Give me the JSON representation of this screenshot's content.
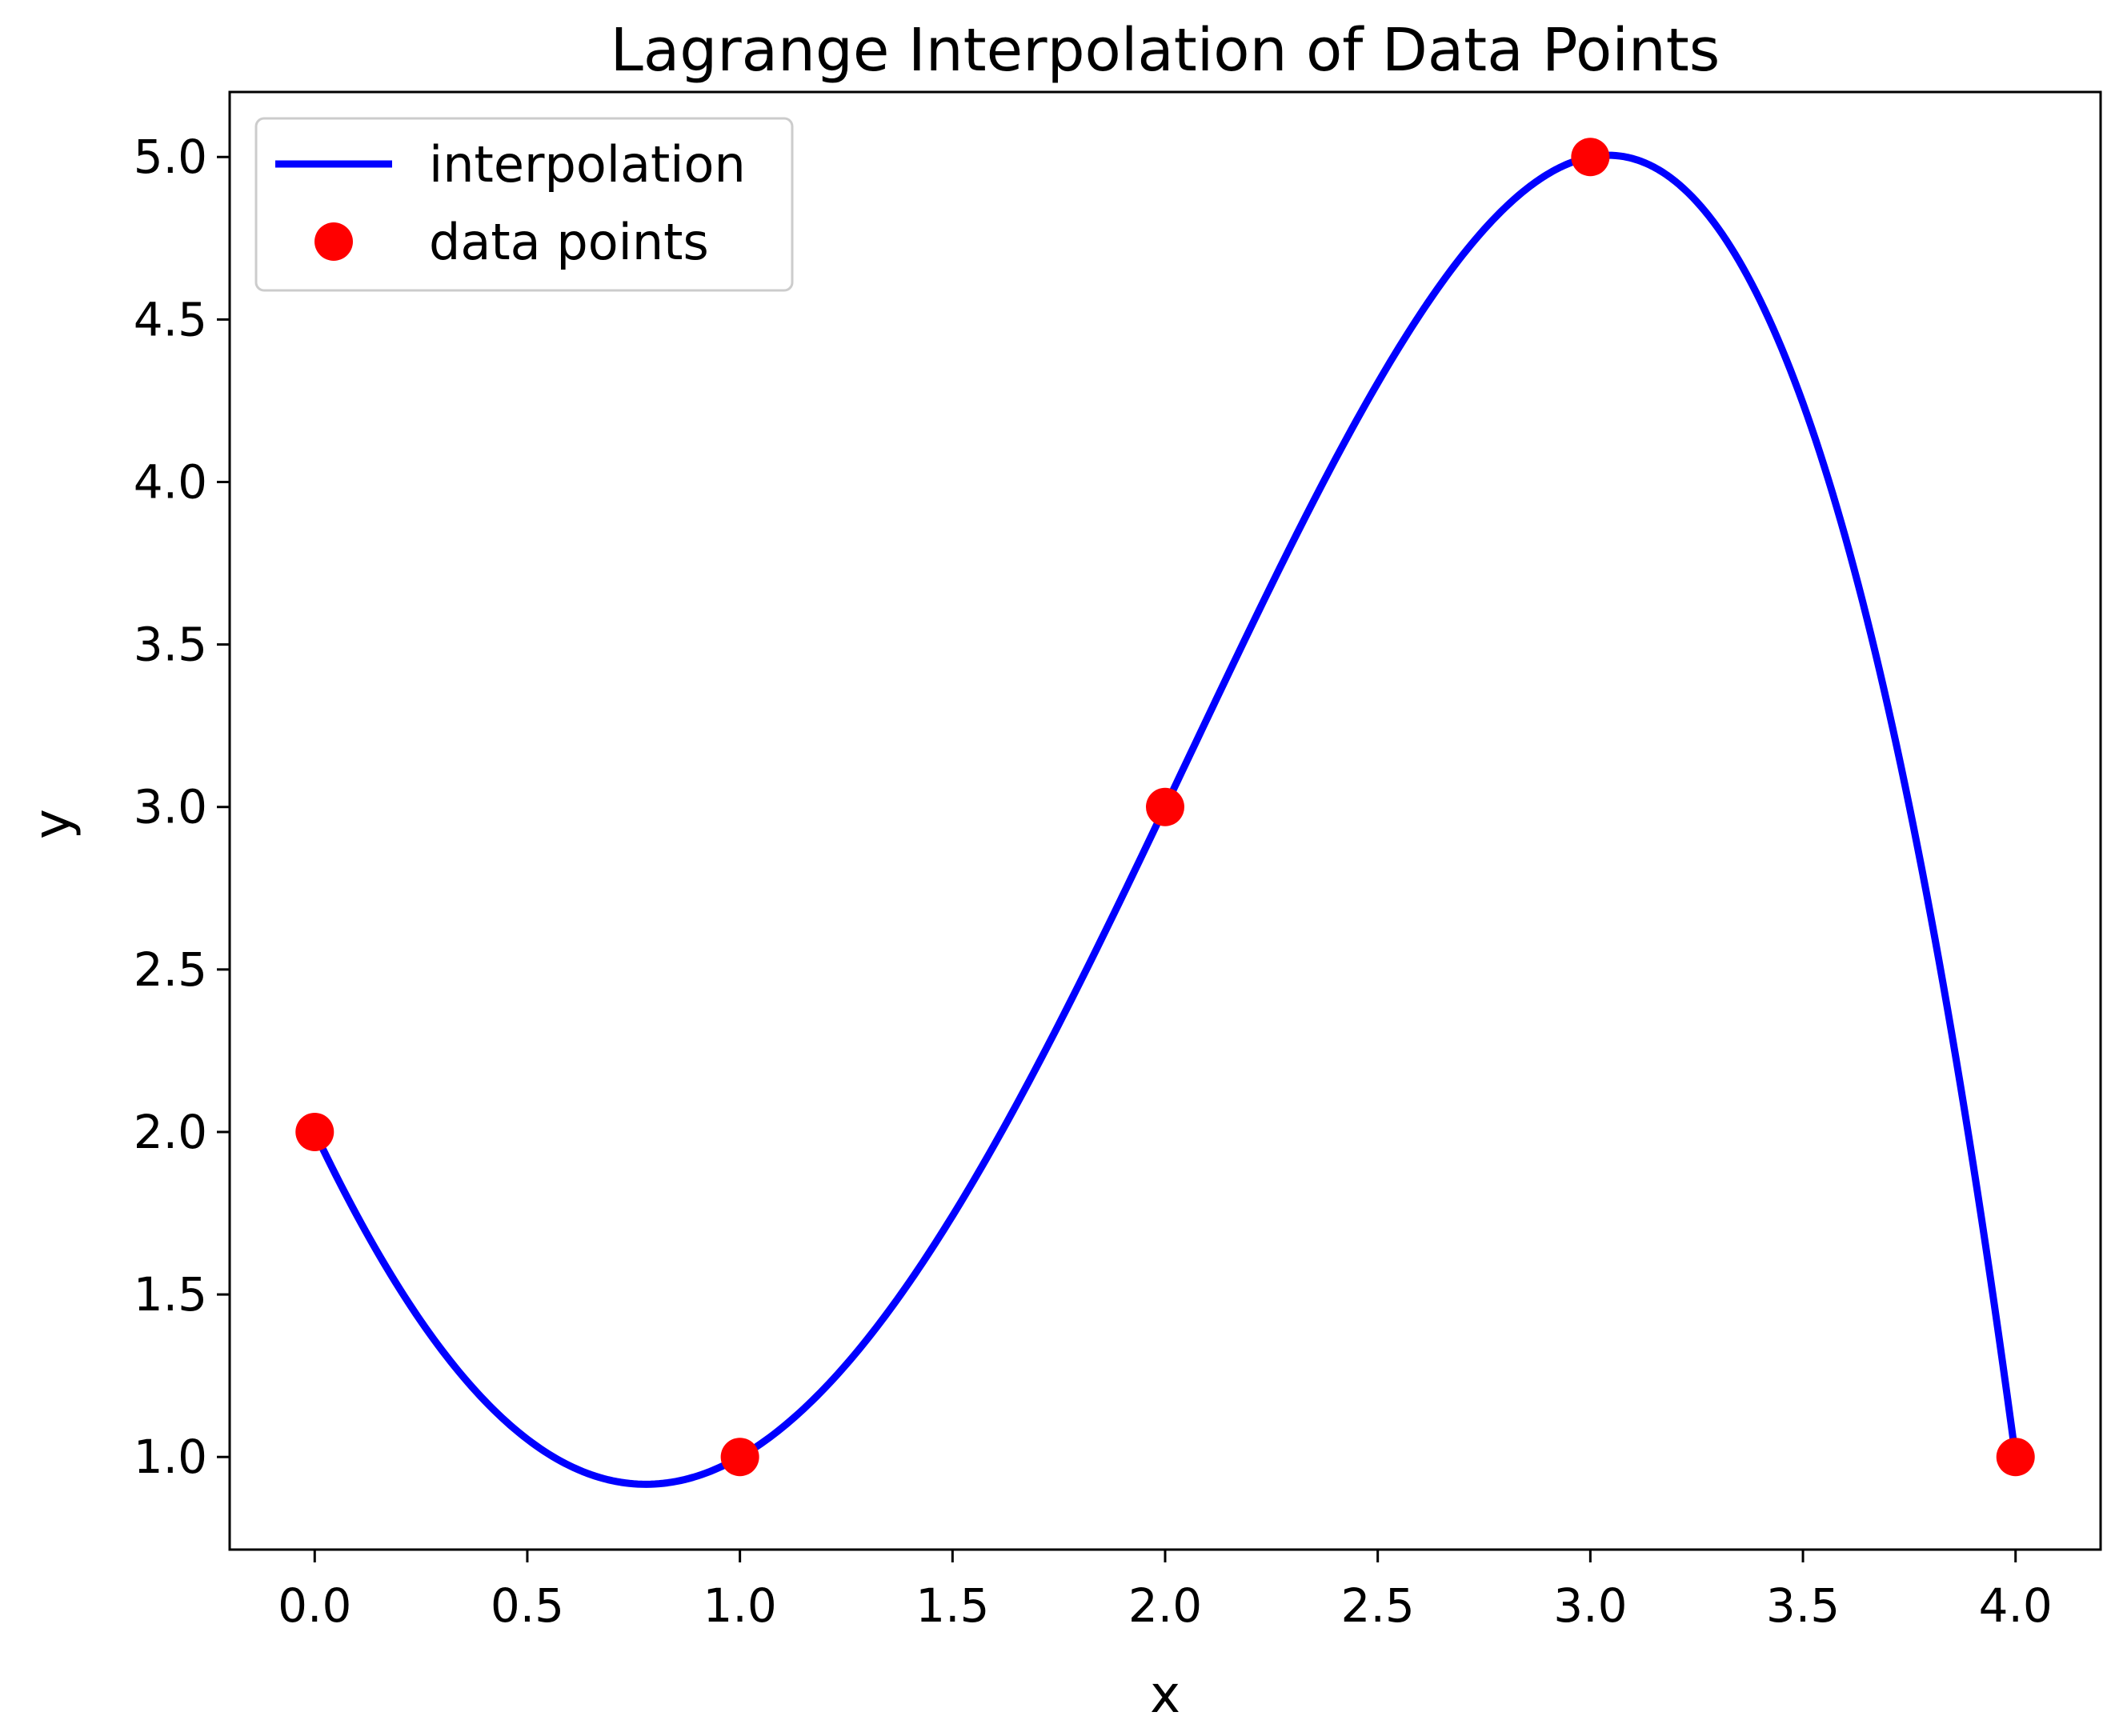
{
  "chart_data": {
    "type": "line",
    "title": "Lagrange Interpolation of Data Points",
    "xlabel": "x",
    "ylabel": "y",
    "xlim": [
      -0.2,
      4.2
    ],
    "ylim": [
      0.715,
      5.2
    ],
    "xticks": [
      0.0,
      0.5,
      1.0,
      1.5,
      2.0,
      2.5,
      3.0,
      3.5,
      4.0
    ],
    "xtick_labels": [
      "0.0",
      "0.5",
      "1.0",
      "1.5",
      "2.0",
      "2.5",
      "3.0",
      "3.5",
      "4.0"
    ],
    "yticks": [
      1.0,
      1.5,
      2.0,
      2.5,
      3.0,
      3.5,
      4.0,
      4.5,
      5.0
    ],
    "ytick_labels": [
      "1.0",
      "1.5",
      "2.0",
      "2.5",
      "3.0",
      "3.5",
      "4.0",
      "4.5",
      "5.0"
    ],
    "grid": false,
    "legend_position": "top-left",
    "series": [
      {
        "name": "interpolation",
        "kind": "line",
        "color": "#0000ff",
        "interpolates": "data points",
        "x_range": [
          0.0,
          4.0
        ]
      },
      {
        "name": "data points",
        "kind": "scatter",
        "color": "#ff0000",
        "x": [
          0,
          1,
          2,
          3,
          4
        ],
        "y": [
          2,
          1,
          3,
          5,
          1
        ]
      }
    ]
  }
}
